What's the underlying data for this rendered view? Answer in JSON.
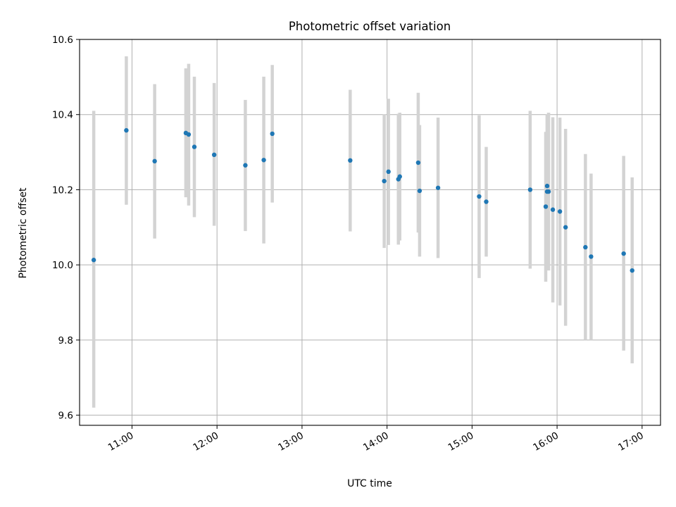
{
  "chart_data": {
    "type": "scatter",
    "title": "Photometric offset variation",
    "xlabel": "UTC time",
    "ylabel": "Photometric offset",
    "x_unit": "UTC hour of day",
    "xlim": [
      "10:23",
      "17:13"
    ],
    "ylim": [
      9.573,
      10.6
    ],
    "x_ticks": [
      "11:00",
      "12:00",
      "13:00",
      "14:00",
      "15:00",
      "16:00",
      "17:00"
    ],
    "y_ticks": [
      "9.6",
      "9.8",
      "10.0",
      "10.2",
      "10.4",
      "10.6"
    ],
    "grid": true,
    "marker_color": "#1f77b4",
    "errorbar_color": "#d3d3d3",
    "points": [
      {
        "time": "10:33",
        "y": 10.013,
        "ylo": 9.62,
        "yhi": 10.41
      },
      {
        "time": "10:56",
        "y": 10.358,
        "ylo": 10.16,
        "yhi": 10.555
      },
      {
        "time": "11:16",
        "y": 10.276,
        "ylo": 10.07,
        "yhi": 10.481
      },
      {
        "time": "11:38",
        "y": 10.351,
        "ylo": 10.18,
        "yhi": 10.523
      },
      {
        "time": "11:40",
        "y": 10.347,
        "ylo": 10.158,
        "yhi": 10.535
      },
      {
        "time": "11:44",
        "y": 10.314,
        "ylo": 10.127,
        "yhi": 10.501
      },
      {
        "time": "11:58",
        "y": 10.293,
        "ylo": 10.104,
        "yhi": 10.484
      },
      {
        "time": "12:20",
        "y": 10.265,
        "ylo": 10.09,
        "yhi": 10.439
      },
      {
        "time": "12:33",
        "y": 10.279,
        "ylo": 10.057,
        "yhi": 10.501
      },
      {
        "time": "12:39",
        "y": 10.349,
        "ylo": 10.166,
        "yhi": 10.532
      },
      {
        "time": "13:34",
        "y": 10.278,
        "ylo": 10.089,
        "yhi": 10.466
      },
      {
        "time": "13:58",
        "y": 10.223,
        "ylo": 10.045,
        "yhi": 10.401
      },
      {
        "time": "14:01",
        "y": 10.248,
        "ylo": 10.053,
        "yhi": 10.442
      },
      {
        "time": "14:08",
        "y": 10.228,
        "ylo": 10.054,
        "yhi": 10.402
      },
      {
        "time": "14:09",
        "y": 10.235,
        "ylo": 10.065,
        "yhi": 10.405
      },
      {
        "time": "14:22",
        "y": 10.272,
        "ylo": 10.086,
        "yhi": 10.458
      },
      {
        "time": "14:23",
        "y": 10.197,
        "ylo": 10.022,
        "yhi": 10.372
      },
      {
        "time": "14:36",
        "y": 10.205,
        "ylo": 10.018,
        "yhi": 10.392
      },
      {
        "time": "15:05",
        "y": 10.182,
        "ylo": 9.965,
        "yhi": 10.398
      },
      {
        "time": "15:10",
        "y": 10.168,
        "ylo": 10.022,
        "yhi": 10.314
      },
      {
        "time": "15:41",
        "y": 10.2,
        "ylo": 9.99,
        "yhi": 10.41
      },
      {
        "time": "15:52",
        "y": 10.155,
        "ylo": 9.955,
        "yhi": 10.354
      },
      {
        "time": "15:53",
        "y": 10.21,
        "ylo": 10.018,
        "yhi": 10.401
      },
      {
        "time": "15:53",
        "y": 10.195,
        "ylo": 9.99,
        "yhi": 10.4
      },
      {
        "time": "15:54",
        "y": 10.195,
        "ylo": 9.985,
        "yhi": 10.405
      },
      {
        "time": "15:57",
        "y": 10.147,
        "ylo": 9.9,
        "yhi": 10.393
      },
      {
        "time": "16:02",
        "y": 10.142,
        "ylo": 9.892,
        "yhi": 10.392
      },
      {
        "time": "16:06",
        "y": 10.1,
        "ylo": 9.838,
        "yhi": 10.362
      },
      {
        "time": "16:20",
        "y": 10.047,
        "ylo": 9.8,
        "yhi": 10.295
      },
      {
        "time": "16:24",
        "y": 10.022,
        "ylo": 9.8,
        "yhi": 10.243
      },
      {
        "time": "16:47",
        "y": 10.03,
        "ylo": 9.772,
        "yhi": 10.29
      },
      {
        "time": "16:53",
        "y": 9.985,
        "ylo": 9.738,
        "yhi": 10.233
      }
    ]
  }
}
